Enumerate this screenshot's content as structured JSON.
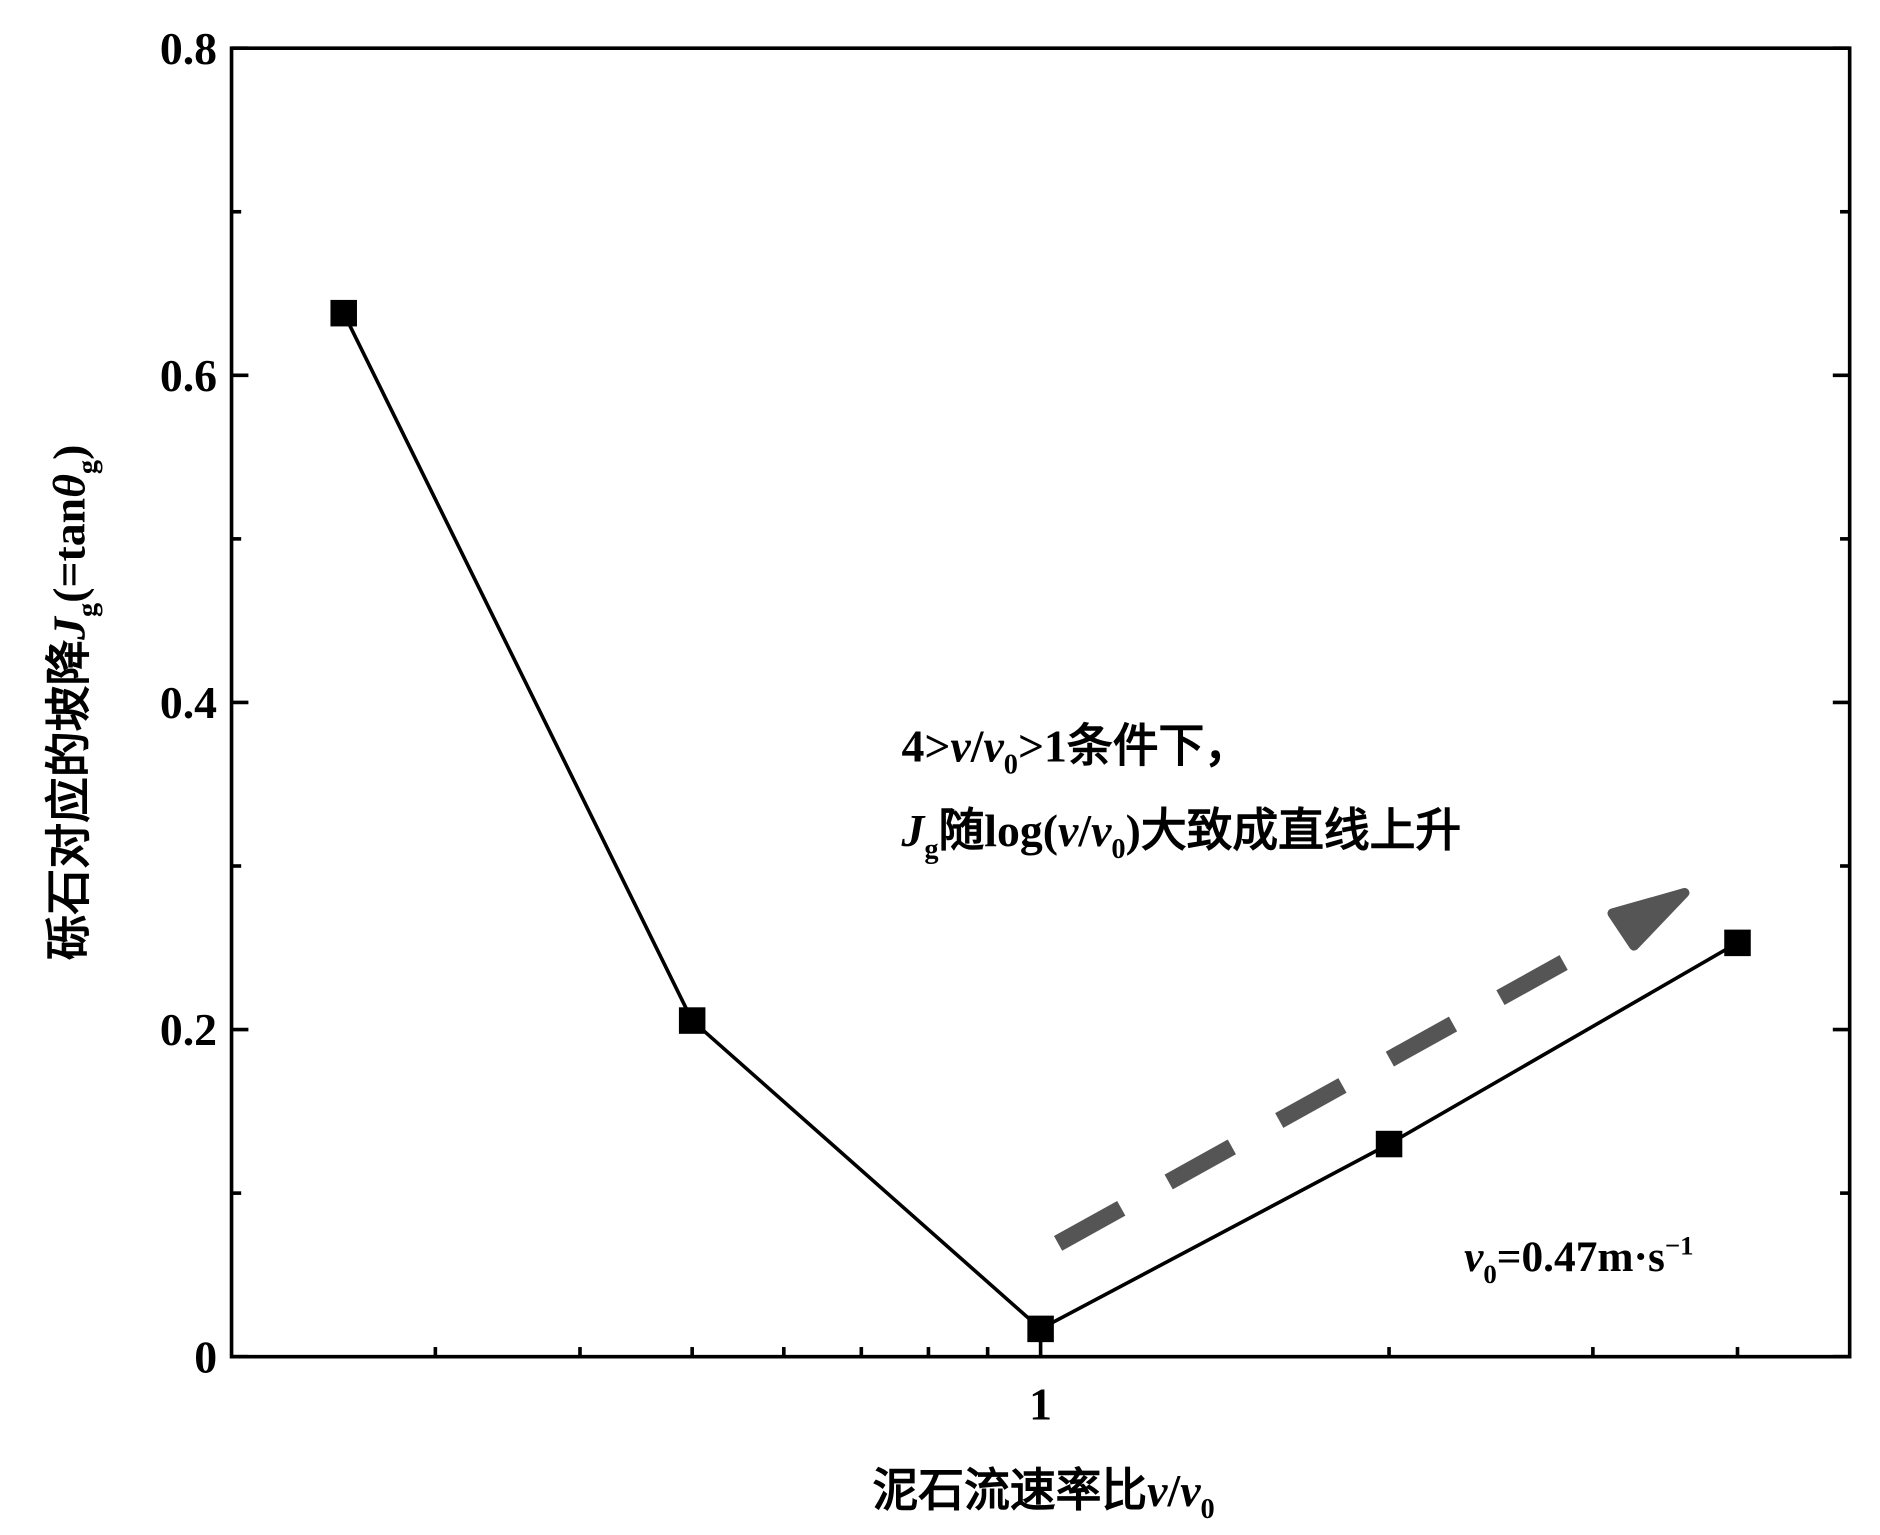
{
  "chart_data": {
    "type": "line",
    "x": [
      0.25,
      0.5,
      1,
      2,
      4
    ],
    "values": [
      0.638,
      0.2055,
      0.017,
      0.13,
      0.253
    ],
    "color": "#000000",
    "xlog": true,
    "xlim": [
      0.2,
      5
    ],
    "xticks": [
      1
    ],
    "xminor": [
      0.3,
      0.4,
      0.5,
      0.6,
      0.7,
      0.8,
      0.9,
      2,
      3,
      4
    ],
    "ylim": [
      0,
      0.8
    ],
    "yticks": [
      0,
      0.2,
      0.4,
      0.6,
      0.8
    ],
    "yminor": [
      0.1,
      0.3,
      0.5,
      0.7
    ],
    "x_label": [
      "泥石流速率比",
      "v",
      "/",
      "v",
      "0"
    ],
    "y_label": [
      "砾石对应的坡降",
      "J",
      "g",
      "(=tan",
      "θ",
      "g",
      ")"
    ],
    "annotation_1": [
      "4>",
      "v",
      "/",
      "v",
      "0",
      ">1条件下，"
    ],
    "annotation_2": [
      "J",
      "g",
      "随log(",
      "v",
      "/",
      "v",
      "0",
      ")大致成直线上升"
    ],
    "annotation_3": [
      "v",
      "0",
      "=0.47m·s",
      "−1"
    ]
  }
}
